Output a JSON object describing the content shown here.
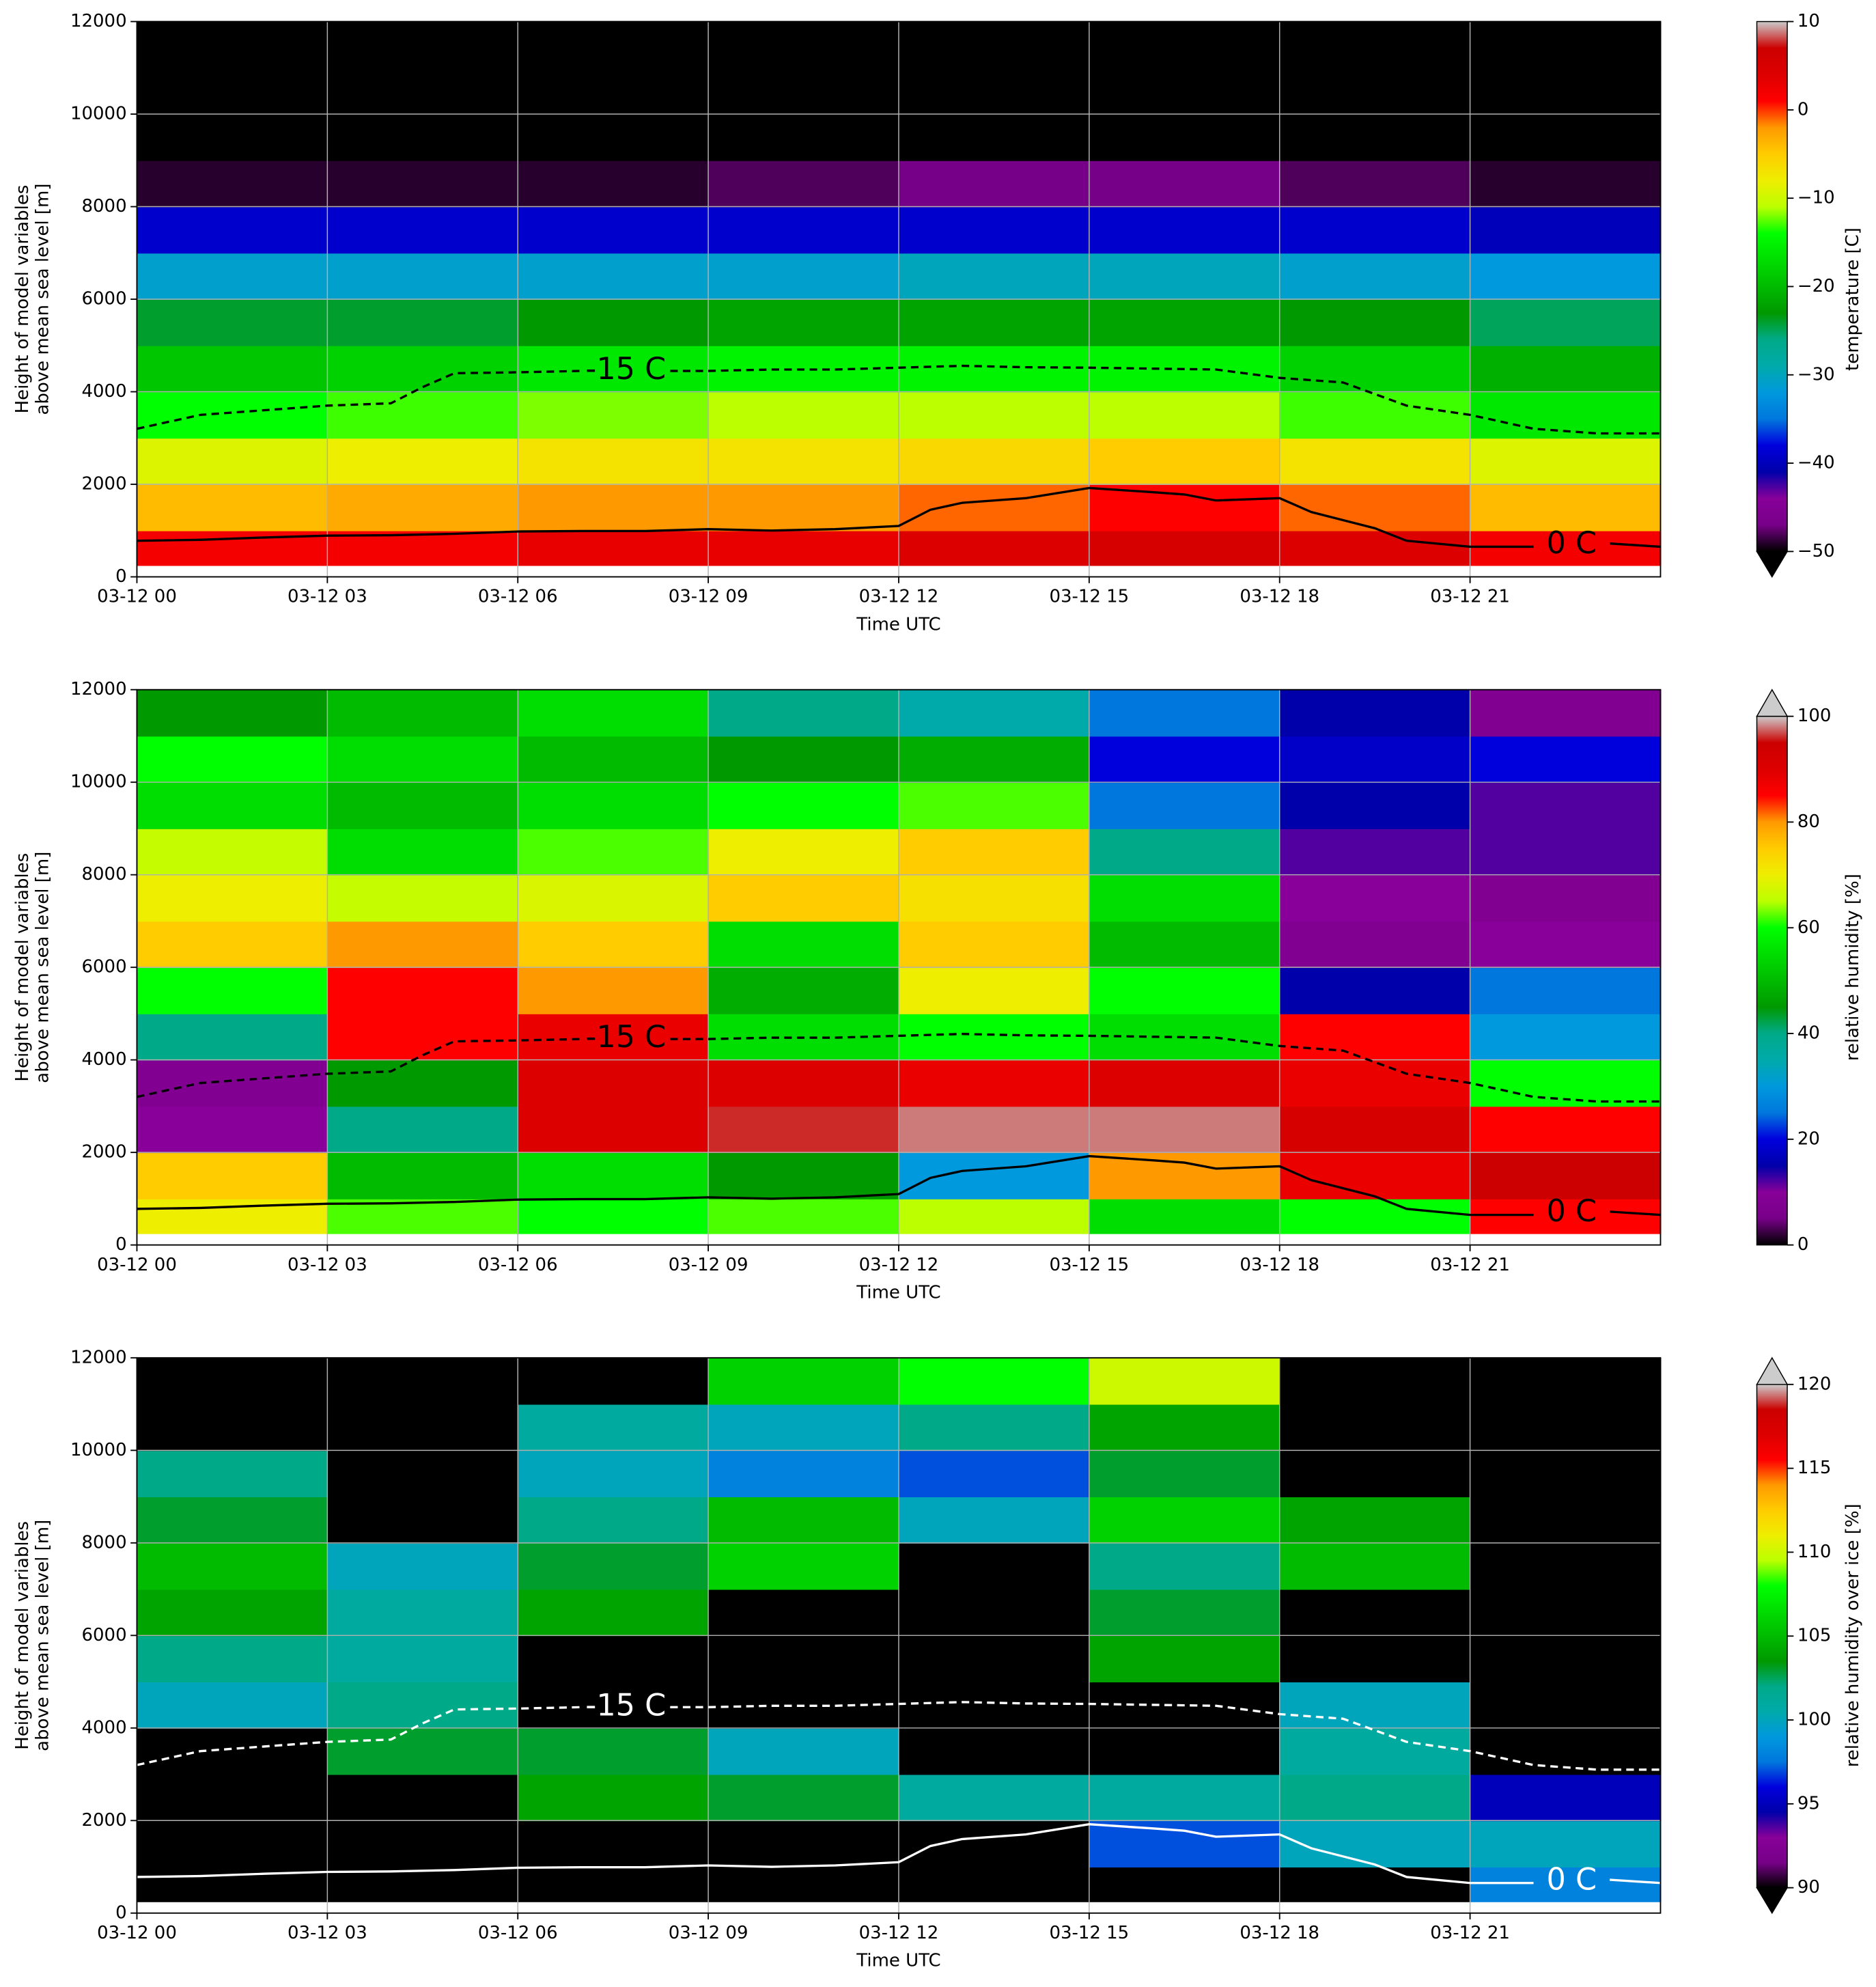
{
  "colormap": [
    "#000000",
    "#770088",
    "#880099",
    "#0000aa",
    "#0000dd",
    "#0077dd",
    "#0099dd",
    "#00aaaa",
    "#00aa88",
    "#009900",
    "#00bb00",
    "#00dd00",
    "#00ff00",
    "#bbff00",
    "#eeee00",
    "#ffcc00",
    "#ff9900",
    "#ff0000",
    "#dd0000",
    "#cc0000",
    "#cccccc"
  ],
  "chart_data": [
    {
      "type": "heatmap",
      "xlabel": "Time UTC",
      "ylabel": [
        "Height of model variables",
        "above mean sea level [m]"
      ],
      "colorbar_label": "temperature [C]",
      "xlim": [
        0,
        24
      ],
      "xticks": [
        {
          "value": 0,
          "label": "03-12 00"
        },
        {
          "value": 3,
          "label": "03-12 03"
        },
        {
          "value": 6,
          "label": "03-12 06"
        },
        {
          "value": 9,
          "label": "03-12 09"
        },
        {
          "value": 12,
          "label": "03-12 12"
        },
        {
          "value": 15,
          "label": "03-12 15"
        },
        {
          "value": 18,
          "label": "03-12 18"
        },
        {
          "value": 21,
          "label": "03-12 21"
        }
      ],
      "ylim": [
        0,
        12000
      ],
      "yticks": [
        0,
        2000,
        4000,
        6000,
        8000,
        10000,
        12000
      ],
      "grid": true,
      "clim": [
        -50,
        10
      ],
      "cticks": [
        {
          "value": -50,
          "label": "−50"
        },
        {
          "value": -40,
          "label": "−40"
        },
        {
          "value": -30,
          "label": "−30"
        },
        {
          "value": -20,
          "label": "−20"
        },
        {
          "value": -10,
          "label": "−10"
        },
        0,
        10
      ],
      "extend": "min",
      "x_edges": [
        0,
        3,
        6,
        9,
        12,
        15,
        18,
        21,
        24
      ],
      "y_edges": [
        250,
        1000,
        2000,
        3000,
        4000,
        5000,
        6000,
        7000,
        8000,
        9000,
        10000,
        11000,
        12000
      ],
      "z": [
        [
          2,
          2,
          3,
          3,
          4,
          5,
          4,
          2
        ],
        [
          -4,
          -3,
          -2,
          -2,
          -1,
          1,
          -1,
          -4
        ],
        [
          -9,
          -8,
          -7,
          -7,
          -6,
          -5,
          -7,
          -9
        ],
        [
          -14,
          -13,
          -12,
          -11,
          -11,
          -11,
          -13,
          -16
        ],
        [
          -19,
          -18,
          -16,
          -15,
          -15,
          -15,
          -18,
          -21
        ],
        [
          -24,
          -24,
          -23,
          -22,
          -22,
          -22,
          -23,
          -25
        ],
        [
          -31,
          -31,
          -31,
          -31,
          -30,
          -30,
          -31,
          -32
        ],
        [
          -39,
          -39,
          -39,
          -39,
          -39,
          -39,
          -39,
          -40
        ],
        [
          -49,
          -49,
          -49,
          -48,
          -47,
          -47,
          -48,
          -49
        ],
        [
          -56,
          -56,
          -56,
          -56,
          -56,
          -56,
          -56,
          -56
        ],
        [
          -57,
          -57,
          -57,
          -57,
          -57,
          -57,
          -57,
          -57
        ],
        [
          -58,
          -58,
          -58,
          -58,
          -58,
          -58,
          -58,
          -58
        ]
      ],
      "contours": [
        {
          "label": "0 C",
          "color": "#000000",
          "style": "solid",
          "x": [
            0,
            1,
            2,
            3,
            4,
            5,
            6,
            7,
            8,
            9,
            10,
            11,
            12,
            12.5,
            13,
            14,
            15,
            16,
            16.5,
            17,
            18,
            18.5,
            19.5,
            20,
            21,
            22,
            null,
            23.2,
            24
          ],
          "y": [
            780,
            800,
            850,
            890,
            900,
            930,
            980,
            990,
            990,
            1030,
            1000,
            1030,
            1100,
            1450,
            1600,
            1700,
            1920,
            1830,
            1780,
            1650,
            1700,
            1400,
            1050,
            780,
            650,
            650,
            null,
            720,
            650
          ]
        },
        {
          "label": "-15 C",
          "color": "#000000",
          "style": "dashed",
          "x": [
            0,
            1,
            2,
            3,
            4,
            4.5,
            5,
            6,
            7,
            null,
            8.4,
            9,
            10,
            11,
            12,
            13,
            14,
            15,
            16,
            17,
            18,
            19,
            20,
            21,
            22,
            23,
            24
          ],
          "y": [
            3200,
            3500,
            3600,
            3700,
            3750,
            4100,
            4400,
            4420,
            4450,
            null,
            4450,
            4450,
            4480,
            4480,
            4520,
            4560,
            4530,
            4520,
            4500,
            4480,
            4300,
            4200,
            3700,
            3500,
            3200,
            3100,
            3100
          ]
        }
      ]
    },
    {
      "type": "heatmap",
      "xlabel": "Time UTC",
      "ylabel": [
        "Height of model variables",
        "above mean sea level [m]"
      ],
      "colorbar_label": "relative humidity [%]",
      "xlim": [
        0,
        24
      ],
      "xticks": [
        {
          "value": 0,
          "label": "03-12 00"
        },
        {
          "value": 3,
          "label": "03-12 03"
        },
        {
          "value": 6,
          "label": "03-12 06"
        },
        {
          "value": 9,
          "label": "03-12 09"
        },
        {
          "value": 12,
          "label": "03-12 12"
        },
        {
          "value": 15,
          "label": "03-12 15"
        },
        {
          "value": 18,
          "label": "03-12 18"
        },
        {
          "value": 21,
          "label": "03-12 21"
        }
      ],
      "ylim": [
        0,
        12000
      ],
      "yticks": [
        0,
        2000,
        4000,
        6000,
        8000,
        10000,
        12000
      ],
      "grid": true,
      "clim": [
        0,
        100
      ],
      "cticks": [
        0,
        20,
        40,
        60,
        80,
        100
      ],
      "extend": "max",
      "x_edges": [
        0,
        3,
        6,
        9,
        12,
        15,
        18,
        21,
        24
      ],
      "y_edges": [
        250,
        1000,
        2000,
        3000,
        4000,
        5000,
        6000,
        7000,
        8000,
        9000,
        10000,
        11000,
        12000
      ],
      "z": [
        [
          70,
          62,
          60,
          62,
          65,
          55,
          60,
          85
        ],
        [
          75,
          50,
          55,
          45,
          30,
          80,
          88,
          95
        ],
        [
          10,
          40,
          90,
          96,
          98,
          98,
          92,
          85
        ],
        [
          8,
          45,
          90,
          90,
          88,
          90,
          88,
          60
        ],
        [
          40,
          85,
          88,
          55,
          60,
          55,
          85,
          30
        ],
        [
          60,
          85,
          80,
          48,
          70,
          60,
          15,
          25
        ],
        [
          75,
          80,
          75,
          55,
          75,
          50,
          8,
          10
        ],
        [
          70,
          66,
          68,
          75,
          72,
          55,
          10,
          8
        ],
        [
          66,
          55,
          62,
          70,
          75,
          40,
          12,
          12
        ],
        [
          55,
          50,
          55,
          60,
          62,
          25,
          15,
          12
        ],
        [
          60,
          55,
          50,
          45,
          48,
          20,
          18,
          20
        ],
        [
          45,
          50,
          55,
          40,
          35,
          25,
          15,
          8
        ]
      ],
      "contours": [
        {
          "label": "0 C",
          "color": "#000000",
          "style": "solid",
          "x": [
            0,
            1,
            2,
            3,
            4,
            5,
            6,
            7,
            8,
            9,
            10,
            11,
            12,
            12.5,
            13,
            14,
            15,
            16,
            16.5,
            17,
            18,
            18.5,
            19.5,
            20,
            21,
            22,
            null,
            23.2,
            24
          ],
          "y": [
            780,
            800,
            850,
            890,
            900,
            930,
            980,
            990,
            990,
            1030,
            1000,
            1030,
            1100,
            1450,
            1600,
            1700,
            1920,
            1830,
            1780,
            1650,
            1700,
            1400,
            1050,
            780,
            650,
            650,
            null,
            720,
            650
          ]
        },
        {
          "label": "-15 C",
          "color": "#000000",
          "style": "dashed",
          "x": [
            0,
            1,
            2,
            3,
            4,
            4.5,
            5,
            6,
            7,
            null,
            8.4,
            9,
            10,
            11,
            12,
            13,
            14,
            15,
            16,
            17,
            18,
            19,
            20,
            21,
            22,
            23,
            24
          ],
          "y": [
            3200,
            3500,
            3600,
            3700,
            3750,
            4100,
            4400,
            4420,
            4450,
            null,
            4450,
            4450,
            4480,
            4480,
            4520,
            4560,
            4530,
            4520,
            4500,
            4480,
            4300,
            4200,
            3700,
            3500,
            3200,
            3100,
            3100
          ]
        }
      ]
    },
    {
      "type": "heatmap",
      "xlabel": "Time UTC",
      "ylabel": [
        "Height of model variables",
        "above mean sea level [m]"
      ],
      "colorbar_label": "relative humidity over ice [%]",
      "xlim": [
        0,
        24
      ],
      "xticks": [
        {
          "value": 0,
          "label": "03-12 00"
        },
        {
          "value": 3,
          "label": "03-12 03"
        },
        {
          "value": 6,
          "label": "03-12 06"
        },
        {
          "value": 9,
          "label": "03-12 09"
        },
        {
          "value": 12,
          "label": "03-12 12"
        },
        {
          "value": 15,
          "label": "03-12 15"
        },
        {
          "value": 18,
          "label": "03-12 18"
        },
        {
          "value": 21,
          "label": "03-12 21"
        }
      ],
      "ylim": [
        0,
        12000
      ],
      "yticks": [
        0,
        2000,
        4000,
        6000,
        8000,
        10000,
        12000
      ],
      "grid": true,
      "clim": [
        90,
        120
      ],
      "cticks": [
        90,
        95,
        100,
        105,
        110,
        115,
        120
      ],
      "extend": "both",
      "x_edges": [
        0,
        3,
        6,
        9,
        12,
        15,
        18,
        21,
        24
      ],
      "y_edges": [
        250,
        1000,
        2000,
        3000,
        4000,
        5000,
        6000,
        7000,
        8000,
        9000,
        10000,
        11000,
        12000
      ],
      "z": [
        [
          85,
          85,
          85,
          85,
          85,
          85,
          85,
          98
        ],
        [
          85,
          85,
          85,
          85,
          85,
          97,
          100,
          100
        ],
        [
          85,
          85,
          104,
          103,
          101,
          101,
          102,
          95
        ],
        [
          85,
          103,
          103,
          100,
          85,
          85,
          101,
          85
        ],
        [
          100,
          102,
          85,
          85,
          85,
          85,
          100,
          85
        ],
        [
          102,
          101,
          85,
          85,
          85,
          104,
          85,
          85
        ],
        [
          104,
          101,
          104,
          85,
          85,
          103,
          85,
          85
        ],
        [
          105,
          100,
          103,
          106,
          85,
          102,
          105,
          85
        ],
        [
          103,
          85,
          102,
          105,
          100,
          106,
          104,
          85
        ],
        [
          102,
          85,
          100,
          98,
          97,
          103,
          85,
          85
        ],
        [
          85,
          85,
          101,
          100,
          102,
          104,
          85,
          85
        ],
        [
          85,
          85,
          85,
          106,
          108,
          110,
          85,
          85
        ]
      ],
      "contours": [
        {
          "label": "0 C",
          "color": "#ffffff",
          "style": "solid",
          "x": [
            0,
            1,
            2,
            3,
            4,
            5,
            6,
            7,
            8,
            9,
            10,
            11,
            12,
            12.5,
            13,
            14,
            15,
            16,
            16.5,
            17,
            18,
            18.5,
            19.5,
            20,
            21,
            22,
            null,
            23.2,
            24
          ],
          "y": [
            780,
            800,
            850,
            890,
            900,
            930,
            980,
            990,
            990,
            1030,
            1000,
            1030,
            1100,
            1450,
            1600,
            1700,
            1920,
            1830,
            1780,
            1650,
            1700,
            1400,
            1050,
            780,
            650,
            650,
            null,
            720,
            650
          ]
        },
        {
          "label": "-15 C",
          "color": "#ffffff",
          "style": "dashed",
          "x": [
            0,
            1,
            2,
            3,
            4,
            4.5,
            5,
            6,
            7,
            null,
            8.4,
            9,
            10,
            11,
            12,
            13,
            14,
            15,
            16,
            17,
            18,
            19,
            20,
            21,
            22,
            23,
            24
          ],
          "y": [
            3200,
            3500,
            3600,
            3700,
            3750,
            4100,
            4400,
            4420,
            4450,
            null,
            4450,
            4450,
            4480,
            4480,
            4520,
            4560,
            4530,
            4520,
            4500,
            4480,
            4300,
            4200,
            3700,
            3500,
            3200,
            3100,
            3100
          ]
        }
      ]
    }
  ]
}
